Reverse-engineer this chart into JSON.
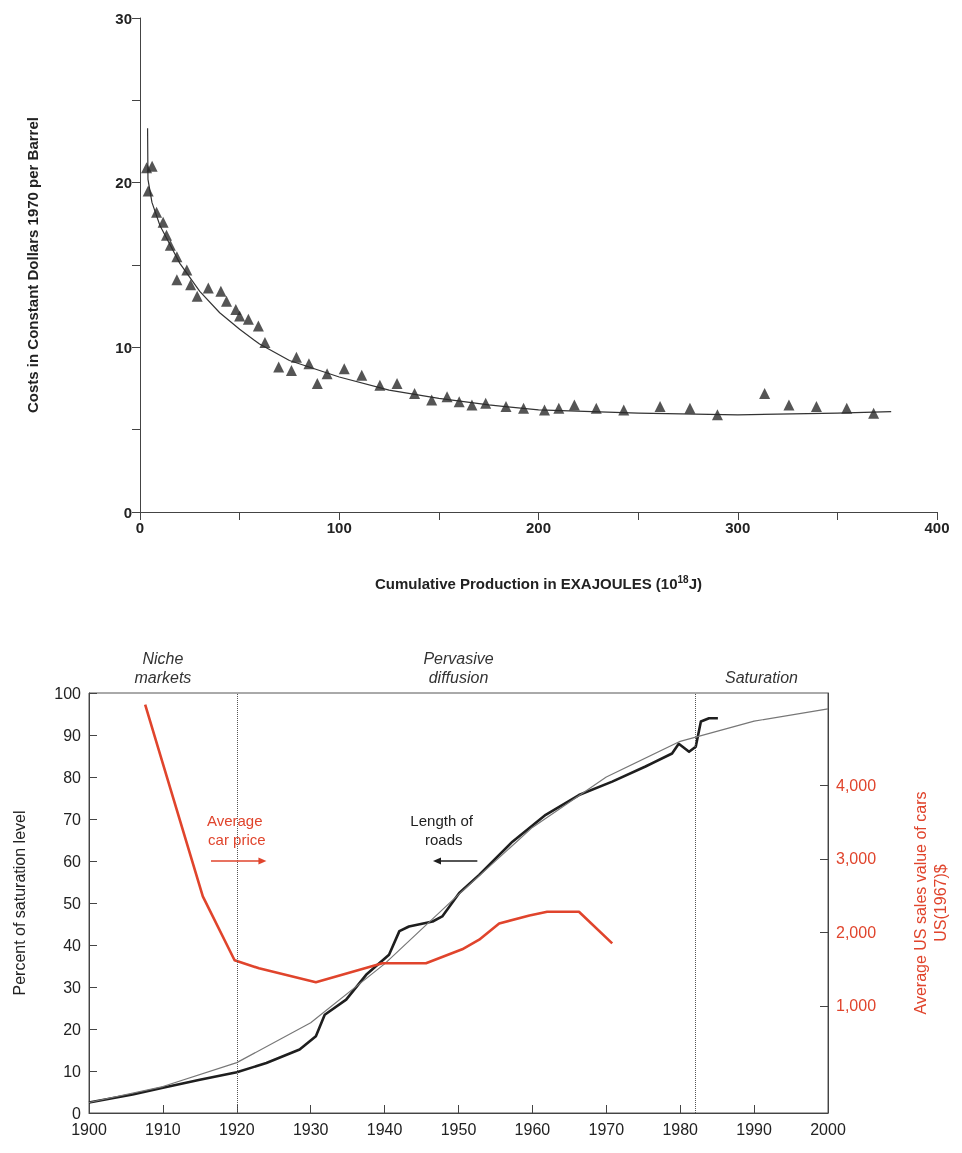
{
  "chart_data": [
    {
      "type": "scatter",
      "ylabel": "Costs in Constant Dollars 1970 per Barrel",
      "xlabel": "Cumulative Production in EXAJOULES (10$^{18}$J)",
      "xlim": [
        0,
        400
      ],
      "ylim": [
        0,
        30
      ],
      "xticks": [
        0,
        {
          "value": 50,
          "label": null
        },
        100,
        {
          "value": 150,
          "label": null
        },
        200,
        {
          "value": 250,
          "label": null
        },
        300,
        {
          "value": 350,
          "label": null
        },
        400
      ],
      "yticks": [
        0,
        {
          "value": 5,
          "label": null
        },
        10,
        {
          "value": 15,
          "label": null
        },
        20,
        {
          "value": 25,
          "label": null
        },
        30
      ],
      "series": [
        {
          "color": "#2a2a2a",
          "marker": "triangle",
          "x": [
            3.3,
            6.1,
            4.1,
            8.3,
            11.6,
            13.3,
            15.2,
            18.5,
            18.5,
            23.5,
            25.4,
            28.7,
            34.3,
            40.6,
            43.4,
            48.1,
            50,
            54.4,
            59.4,
            62.7,
            69.6,
            76,
            78.5,
            84.8,
            89,
            93.9,
            102.5,
            111.3,
            120.4,
            129,
            137.8,
            146.4,
            154.1,
            160.2,
            166.6,
            173.5,
            183.7,
            192.5,
            203,
            210.2,
            218,
            229,
            242.8,
            261,
            276,
            289.8,
            313.5,
            325.7,
            339.5,
            354.7,
            368.2
          ],
          "values": [
            20.9,
            21,
            19.5,
            18.2,
            17.6,
            16.8,
            16.2,
            15.5,
            14.1,
            14.7,
            13.8,
            13.1,
            13.6,
            13.4,
            12.8,
            12.3,
            11.9,
            11.7,
            11.3,
            10.3,
            8.8,
            8.6,
            9.4,
            9,
            7.8,
            8.4,
            8.7,
            8.3,
            7.7,
            7.8,
            7.2,
            6.8,
            7,
            6.7,
            6.5,
            6.6,
            6.4,
            6.3,
            6.2,
            6.3,
            6.5,
            6.3,
            6.2,
            6.4,
            6.3,
            5.9,
            7.2,
            6.5,
            6.4,
            6.3,
            6
          ]
        },
        {
          "type": "line",
          "marker": "none",
          "color": "#333333",
          "x": [
            3.8,
            4,
            6,
            10,
            20,
            30,
            40,
            50,
            60,
            75,
            100,
            125,
            150,
            175,
            200,
            250,
            300,
            350,
            377
          ],
          "values": [
            23.3,
            20.2,
            18.8,
            17.4,
            15.1,
            13.4,
            12.1,
            11.1,
            10.2,
            9.2,
            8.2,
            7.4,
            6.9,
            6.5,
            6.2,
            6,
            5.9,
            6,
            6.1
          ]
        }
      ]
    },
    {
      "type": "line",
      "ylabel": "Percent of saturation level",
      "y2label": "Average US sales value of cars\nUS(1967)$",
      "xlim": [
        1900,
        2000
      ],
      "ylim": [
        0,
        100
      ],
      "y2lim": [
        -460,
        5260
      ],
      "xticks": [
        1900,
        1910,
        1920,
        1930,
        1940,
        1950,
        1960,
        1970,
        1980,
        1990,
        2000
      ],
      "yticks": [
        0,
        10,
        20,
        30,
        40,
        50,
        60,
        70,
        80,
        90,
        100
      ],
      "y2ticks": [
        {
          "value": 1000,
          "label": "1,000"
        },
        {
          "value": 2000,
          "label": "2,000"
        },
        {
          "value": 3000,
          "label": "3,000"
        },
        {
          "value": 4000,
          "label": "4,000"
        }
      ],
      "annotations": [
        "Niche\nmarkets",
        "Pervasive\ndiffusion",
        "Saturation"
      ],
      "ref_lines": [
        {
          "axis": "x",
          "value": 1920,
          "line_style": "dotted",
          "color": "#555555"
        },
        {
          "axis": "x",
          "value": 1982,
          "line_style": "dotted",
          "color": "#555555"
        }
      ],
      "series": [
        {
          "name": "Length of roads",
          "color": "#1e1e1e",
          "x": [
            1900,
            1905.9,
            1910,
            1915,
            1920,
            1924,
            1928.5,
            1930.7,
            1931.9,
            1934.8,
            1937.5,
            1940.6,
            1942,
            1943.3,
            1946.5,
            1947.8,
            1950.1,
            1952.8,
            1957.3,
            1961.8,
            1966.3,
            1970.8,
            1975.3,
            1978.9,
            1979.8,
            1981.2,
            1982.1,
            1982.8,
            1983.9,
            1985.1
          ],
          "values": [
            2.5,
            4.4,
            6,
            7.9,
            9.7,
            11.9,
            15.1,
            18.3,
            23.4,
            27,
            32.9,
            37.7,
            43.3,
            44.4,
            45.6,
            46.8,
            52.4,
            56.7,
            64.6,
            71,
            75.7,
            78.9,
            82.5,
            85.6,
            87.9,
            86,
            87.2,
            93.2,
            94,
            94
          ]
        },
        {
          "color": "#777777",
          "x": [
            1900,
            1910,
            1920,
            1930,
            1940,
            1950,
            1960,
            1970,
            1980,
            1990,
            2000
          ],
          "values": [
            2.5,
            6.3,
            12,
            21.5,
            35.5,
            52,
            68,
            80,
            88.5,
            93.3,
            96.2
          ]
        },
        {
          "name": "Average car price",
          "color": "#e0442c",
          "axis": "y2",
          "x": [
            1907.6,
            1915.4,
            1919.7,
            1923,
            1930.7,
            1939.7,
            1945.6,
            1950.5,
            1952.8,
            1955.5,
            1959.6,
            1962,
            1966.3,
            1970.8
          ],
          "values": [
            5100,
            2490,
            1620,
            1510,
            1320,
            1580,
            1580,
            1770,
            1900,
            2120,
            2230,
            2280,
            2280,
            1850
          ]
        }
      ]
    }
  ]
}
